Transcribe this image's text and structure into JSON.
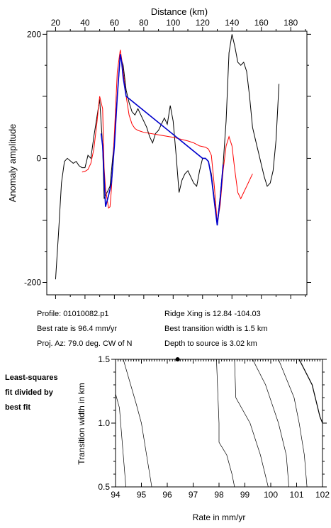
{
  "top_chart": {
    "xlabel": "Distance (km)",
    "ylabel": "Anomaly amplitude",
    "xlim": [
      14,
      191
    ],
    "ylim": [
      -220,
      205
    ],
    "x_ticks": [
      "20",
      "40",
      "60",
      "80",
      "100",
      "120",
      "140",
      "160",
      "180"
    ],
    "y_ticks": [
      "200",
      "0",
      "-200"
    ]
  },
  "info": {
    "profile": "Profile: 01010082.p1",
    "best_rate": "Best rate is 96.4 mm/yr",
    "proj_az": "Proj. Az: 79.0 deg. CW of N",
    "ridge_xing": "Ridge Xing is 12.84 -104.03",
    "best_width": "Best transition width is 1.5 km",
    "depth": "Depth to source is   3.02 km"
  },
  "side_label": [
    "Least-squares",
    "fit divided by",
    "best fit"
  ],
  "bottom_chart": {
    "xlabel": "Rate in mm/yr",
    "ylabel": "Transition width in km",
    "x_ticks": [
      "94",
      "95",
      "96",
      "97",
      "98",
      "99",
      "100",
      "101",
      "102"
    ],
    "y_ticks": [
      "1.5",
      "1.0",
      "0.5"
    ]
  },
  "chart_data": [
    {
      "type": "line",
      "xlabel": "Distance (km)",
      "ylabel": "Anomaly amplitude",
      "xlim": [
        14,
        191
      ],
      "ylim": [
        -220,
        205
      ],
      "series": [
        {
          "color": "#000000",
          "points": [
            [
              20,
              -195
            ],
            [
              22,
              -120
            ],
            [
              24,
              -40
            ],
            [
              26,
              -5
            ],
            [
              28,
              0
            ],
            [
              32,
              -8
            ],
            [
              34,
              -5
            ],
            [
              36,
              -12
            ],
            [
              38,
              -15
            ],
            [
              40,
              -15
            ],
            [
              42,
              5
            ],
            [
              44,
              0
            ],
            [
              46,
              35
            ],
            [
              50,
              95
            ],
            [
              52,
              20
            ],
            [
              53,
              -65
            ],
            [
              54,
              -60
            ],
            [
              56,
              -50
            ],
            [
              57,
              -45
            ],
            [
              60,
              30
            ],
            [
              62,
              100
            ],
            [
              64,
              165
            ],
            [
              66,
              150
            ],
            [
              68,
              110
            ],
            [
              70,
              90
            ],
            [
              72,
              75
            ],
            [
              74,
              70
            ],
            [
              76,
              80
            ],
            [
              78,
              70
            ],
            [
              82,
              50
            ],
            [
              84,
              35
            ],
            [
              86,
              25
            ],
            [
              88,
              40
            ],
            [
              90,
              45
            ],
            [
              92,
              55
            ],
            [
              94,
              65
            ],
            [
              96,
              55
            ],
            [
              98,
              85
            ],
            [
              100,
              60
            ],
            [
              102,
              5
            ],
            [
              104,
              -55
            ],
            [
              106,
              -35
            ],
            [
              108,
              -25
            ],
            [
              110,
              -20
            ],
            [
              112,
              -30
            ],
            [
              114,
              -40
            ],
            [
              116,
              -45
            ],
            [
              118,
              -20
            ],
            [
              120,
              0
            ],
            [
              122,
              0
            ],
            [
              124,
              -5
            ],
            [
              126,
              -25
            ],
            [
              130,
              -105
            ],
            [
              132,
              -60
            ],
            [
              134,
              -10
            ],
            [
              136,
              60
            ],
            [
              138,
              170
            ],
            [
              140,
              200
            ],
            [
              142,
              180
            ],
            [
              144,
              155
            ],
            [
              146,
              150
            ],
            [
              148,
              155
            ],
            [
              150,
              140
            ],
            [
              152,
              100
            ],
            [
              154,
              50
            ],
            [
              156,
              30
            ],
            [
              158,
              10
            ],
            [
              160,
              -10
            ],
            [
              162,
              -30
            ],
            [
              164,
              -45
            ],
            [
              166,
              -40
            ],
            [
              168,
              -20
            ],
            [
              170,
              30
            ],
            [
              172,
              120
            ]
          ]
        },
        {
          "color": "#ff0000",
          "points": [
            [
              38,
              -22
            ],
            [
              40,
              -21
            ],
            [
              42,
              -18
            ],
            [
              44,
              -8
            ],
            [
              46,
              15
            ],
            [
              48,
              55
            ],
            [
              50,
              100
            ],
            [
              52,
              80
            ],
            [
              53,
              -15
            ],
            [
              54,
              -50
            ],
            [
              56,
              -80
            ],
            [
              57,
              -78
            ],
            [
              58,
              -50
            ],
            [
              60,
              40
            ],
            [
              62,
              140
            ],
            [
              64,
              175
            ],
            [
              65,
              160
            ],
            [
              66,
              140
            ],
            [
              68,
              100
            ],
            [
              70,
              70
            ],
            [
              72,
              55
            ],
            [
              74,
              48
            ],
            [
              76,
              45
            ],
            [
              80,
              42
            ],
            [
              90,
              38
            ],
            [
              100,
              34
            ],
            [
              110,
              28
            ],
            [
              114,
              25
            ],
            [
              118,
              20
            ],
            [
              122,
              18
            ],
            [
              124,
              15
            ],
            [
              126,
              5
            ],
            [
              128,
              -45
            ],
            [
              130,
              -105
            ],
            [
              132,
              -75
            ],
            [
              134,
              -20
            ],
            [
              136,
              20
            ],
            [
              138,
              35
            ],
            [
              140,
              20
            ],
            [
              142,
              -20
            ],
            [
              144,
              -55
            ],
            [
              146,
              -65
            ],
            [
              148,
              -55
            ],
            [
              150,
              -45
            ],
            [
              152,
              -35
            ],
            [
              154,
              -25
            ]
          ]
        },
        {
          "color": "#0000cc",
          "points": [
            [
              51,
              40
            ],
            [
              52,
              20
            ],
            [
              53,
              -30
            ],
            [
              54,
              -78
            ],
            [
              56,
              -60
            ],
            [
              58,
              -40
            ],
            [
              60,
              20
            ],
            [
              62,
              100
            ],
            [
              64,
              168
            ],
            [
              65,
              155
            ],
            [
              66,
              130
            ],
            [
              68,
              100
            ],
            [
              120,
              0
            ],
            [
              122,
              0
            ],
            [
              124,
              -5
            ],
            [
              126,
              -30
            ],
            [
              128,
              -70
            ],
            [
              130,
              -108
            ],
            [
              132,
              -65
            ],
            [
              134,
              -10
            ]
          ]
        }
      ]
    },
    {
      "type": "line",
      "xlabel": "Rate in mm/yr",
      "ylabel": "Transition width in km",
      "xlim": [
        94,
        102
      ],
      "ylim": [
        0.5,
        1.5
      ],
      "best_fit_point": [
        96.4,
        1.5
      ],
      "series": [
        {
          "color": "#000000",
          "points": [
            [
              94.0,
              1.23
            ],
            [
              94.15,
              1.12
            ],
            [
              94.3,
              0.75
            ],
            [
              94.4,
              0.5
            ]
          ]
        },
        {
          "color": "#000000",
          "points": [
            [
              94.3,
              1.5
            ],
            [
              94.8,
              1.15
            ],
            [
              95.0,
              1.0
            ],
            [
              95.2,
              0.75
            ],
            [
              95.4,
              0.5
            ]
          ]
        },
        {
          "color": "#000000",
          "points": [
            [
              97.9,
              1.5
            ],
            [
              98.0,
              1.0
            ],
            [
              98.0,
              0.85
            ],
            [
              98.3,
              0.75
            ],
            [
              98.5,
              0.6
            ],
            [
              98.6,
              0.5
            ]
          ]
        },
        {
          "color": "#000000",
          "points": [
            [
              98.6,
              1.5
            ],
            [
              98.65,
              1.2
            ],
            [
              99.2,
              1.0
            ],
            [
              99.6,
              0.75
            ],
            [
              99.9,
              0.5
            ]
          ]
        },
        {
          "color": "#000000",
          "points": [
            [
              99.3,
              1.5
            ],
            [
              99.8,
              1.3
            ],
            [
              100.3,
              1.0
            ],
            [
              100.6,
              0.75
            ],
            [
              100.7,
              0.5
            ]
          ]
        },
        {
          "color": "#000000",
          "points": [
            [
              100.3,
              1.5
            ],
            [
              100.9,
              1.2
            ],
            [
              101.1,
              1.0
            ],
            [
              101.3,
              0.75
            ],
            [
              101.4,
              0.5
            ]
          ]
        },
        {
          "color": "#000000",
          "points": [
            [
              101.1,
              1.5
            ],
            [
              101.6,
              1.3
            ],
            [
              101.9,
              1.05
            ],
            [
              102.0,
              1.0
            ]
          ]
        }
      ]
    }
  ]
}
